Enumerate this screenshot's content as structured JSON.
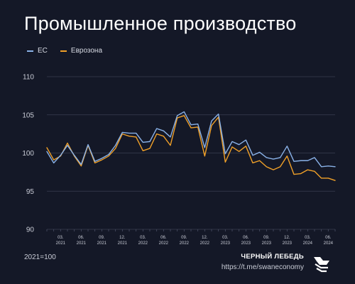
{
  "title": "Промышленное производство",
  "footer": {
    "note": "2021=100",
    "brand_name": "ЧЕРНЫЙ ЛЕБЕДЬ",
    "brand_link": "https://t.me/swaneconomy"
  },
  "colors": {
    "background": "#141827",
    "eu": "#8ab2e8",
    "eurozone": "#f0a028",
    "grid": "#3a3f52"
  },
  "chart_data": {
    "type": "line",
    "ylim": [
      90,
      110
    ],
    "yticks": [
      90,
      95,
      100,
      105,
      110
    ],
    "grid": "horizontal",
    "legend_position": "top-left",
    "x": [
      "2021-01",
      "2021-02",
      "2021-03",
      "2021-04",
      "2021-05",
      "2021-06",
      "2021-07",
      "2021-08",
      "2021-09",
      "2021-10",
      "2021-11",
      "2021-12",
      "2022-01",
      "2022-02",
      "2022-03",
      "2022-04",
      "2022-05",
      "2022-06",
      "2022-07",
      "2022-08",
      "2022-09",
      "2022-10",
      "2022-11",
      "2022-12",
      "2023-01",
      "2023-02",
      "2023-03",
      "2023-04",
      "2023-05",
      "2023-06",
      "2023-07",
      "2023-08",
      "2023-09",
      "2023-10",
      "2023-11",
      "2023-12",
      "2024-01",
      "2024-02",
      "2024-03",
      "2024-04",
      "2024-05",
      "2024-06",
      "2024-07"
    ],
    "xtick_labels": [
      {
        "month": "03.",
        "year": "2021",
        "x": "2021-03"
      },
      {
        "month": "06.",
        "year": "2021",
        "x": "2021-06"
      },
      {
        "month": "09.",
        "year": "2021",
        "x": "2021-09"
      },
      {
        "month": "12.",
        "year": "2021",
        "x": "2021-12"
      },
      {
        "month": "03.",
        "year": "2022",
        "x": "2022-03"
      },
      {
        "month": "06.",
        "year": "2022",
        "x": "2022-06"
      },
      {
        "month": "09.",
        "year": "2022",
        "x": "2022-09"
      },
      {
        "month": "12.",
        "year": "2022",
        "x": "2022-12"
      },
      {
        "month": "03.",
        "year": "2023",
        "x": "2023-03"
      },
      {
        "month": "06.",
        "year": "2023",
        "x": "2023-06"
      },
      {
        "month": "09.",
        "year": "2023",
        "x": "2023-09"
      },
      {
        "month": "12.",
        "year": "2023",
        "x": "2023-12"
      },
      {
        "month": "03.",
        "year": "2024",
        "x": "2024-03"
      },
      {
        "month": "06.",
        "year": "2024",
        "x": "2024-06"
      }
    ],
    "series": [
      {
        "name": "ЕС",
        "color": "#8ab2e8",
        "values": [
          100.2,
          98.7,
          99.7,
          101.0,
          99.7,
          98.5,
          101.1,
          98.9,
          99.3,
          99.8,
          101.0,
          102.7,
          102.6,
          102.6,
          101.4,
          101.5,
          103.2,
          102.9,
          102.1,
          104.9,
          105.4,
          103.7,
          103.8,
          100.7,
          104.2,
          105.1,
          99.9,
          101.5,
          101.1,
          101.7,
          99.7,
          100.1,
          99.4,
          99.2,
          99.4,
          100.9,
          98.9,
          99.0,
          99.0,
          99.4,
          98.2,
          98.3,
          98.2
        ]
      },
      {
        "name": "Еврозона",
        "color": "#f0a028",
        "values": [
          100.7,
          99.1,
          99.6,
          101.3,
          99.6,
          98.3,
          101.0,
          98.7,
          99.1,
          99.6,
          100.6,
          102.5,
          102.2,
          102.1,
          100.3,
          100.6,
          102.5,
          102.2,
          101.0,
          104.6,
          104.9,
          103.3,
          103.4,
          99.6,
          103.6,
          104.7,
          98.8,
          100.8,
          100.2,
          100.9,
          98.7,
          99.0,
          98.2,
          97.8,
          98.2,
          99.6,
          97.2,
          97.3,
          97.8,
          97.6,
          96.7,
          96.7,
          96.4
        ]
      }
    ]
  }
}
